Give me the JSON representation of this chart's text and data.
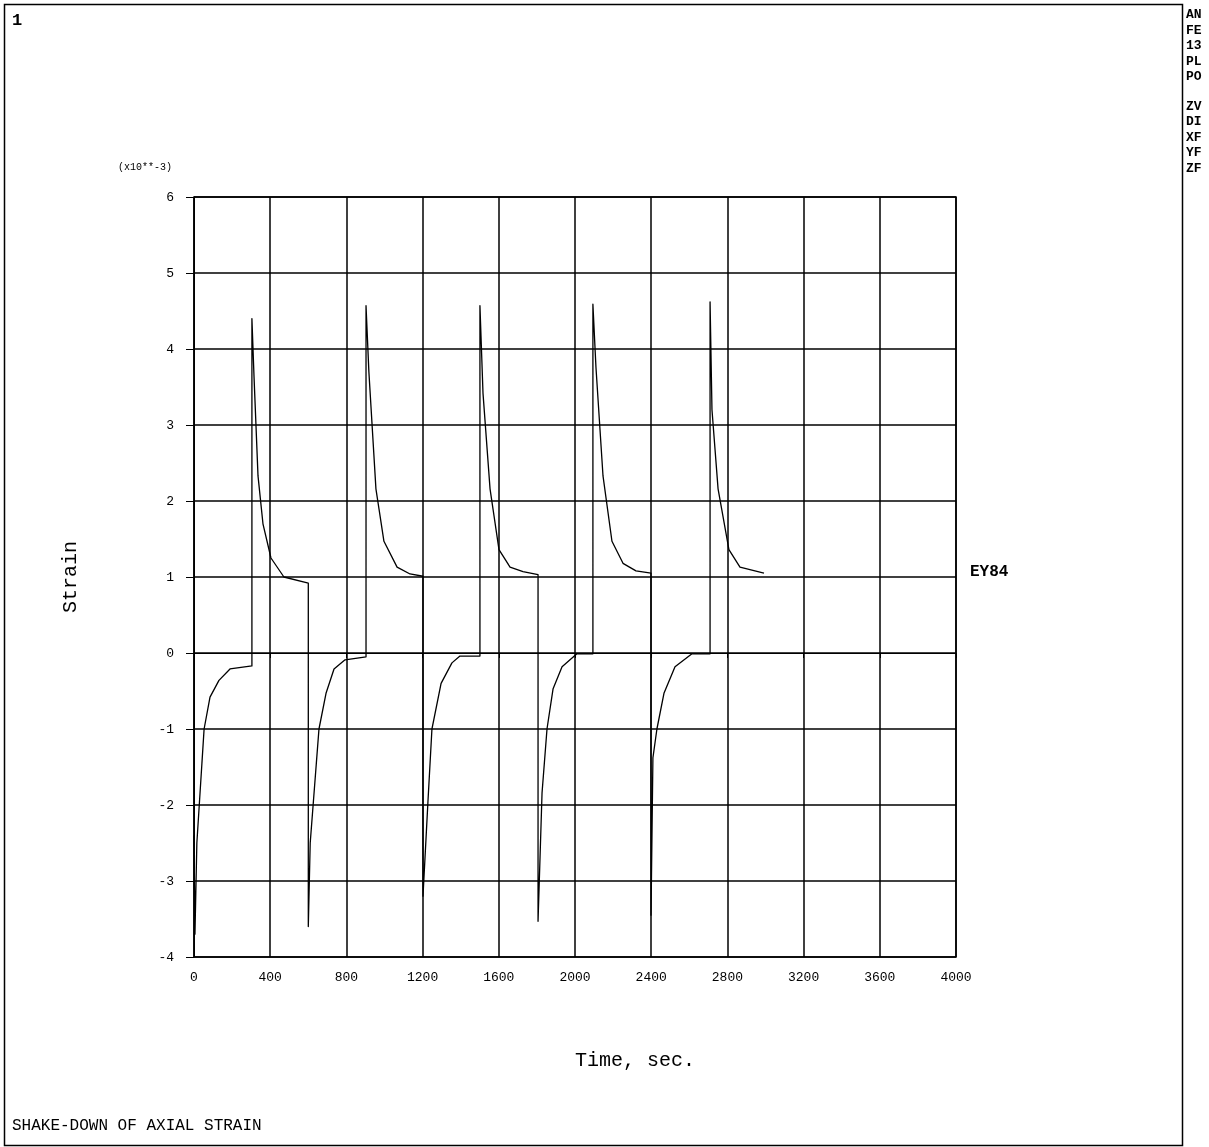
{
  "chart_data": {
    "type": "line",
    "title": "SHAKE-DOWN OF AXIAL STRAIN",
    "xlabel": "Time, sec.",
    "ylabel": "Strain",
    "annotations": [
      "1",
      "(x10**-3)",
      "AN",
      "FE",
      "13",
      "PL",
      "PO",
      "ZV",
      "DI",
      "XF",
      "YF",
      "ZF"
    ],
    "xlim": [
      0,
      4000
    ],
    "xticks": [
      0,
      400,
      800,
      1200,
      1600,
      2000,
      2400,
      2800,
      3200,
      3600,
      4000
    ],
    "ylim": [
      -4,
      6
    ],
    "yticks": [
      -4,
      -3,
      -2,
      -1,
      0,
      1,
      2,
      3,
      4,
      5,
      6
    ],
    "grid": true,
    "legend": false,
    "marker": "none",
    "line_style": "solid",
    "series": [
      {
        "name": "EY84",
        "color": "#000000",
        "x": [
          0,
          5,
          15,
          53,
          84,
          131,
          189,
          304,
          304,
          315,
          336,
          362,
          404,
          472,
          600,
          600,
          610,
          656,
          693,
          735,
          793,
          903,
          903,
          918,
          955,
          997,
          1066,
          1134,
          1202,
          1202,
          1228,
          1249,
          1297,
          1354,
          1396,
          1501,
          1501,
          1517,
          1554,
          1601,
          1659,
          1727,
          1806,
          1806,
          1827,
          1853,
          1885,
          1932,
          2010,
          2094,
          2094,
          2110,
          2147,
          2194,
          2252,
          2320,
          2399,
          2399,
          2409,
          2430,
          2467,
          2525,
          2614,
          2709,
          2709,
          2719,
          2751,
          2808,
          2866,
          2992
        ],
        "values": [
          -2.4,
          -3.7,
          -2.5,
          -1,
          -0.58,
          -0.36,
          -0.21,
          -0.17,
          4.4,
          3.64,
          2.33,
          1.7,
          1.25,
          1,
          0.92,
          -3.6,
          -2.5,
          -1,
          -0.53,
          -0.21,
          -0.09,
          -0.05,
          4.57,
          3.7,
          2.16,
          1.47,
          1.13,
          1.04,
          1.01,
          -3.2,
          -1.96,
          -1,
          -0.4,
          -0.13,
          -0.04,
          -0.04,
          4.57,
          3.42,
          2.16,
          1.36,
          1.13,
          1.07,
          1.03,
          -3.53,
          -1.84,
          -1,
          -0.47,
          -0.18,
          -0.01,
          -0.01,
          4.59,
          3.76,
          2.33,
          1.47,
          1.18,
          1.08,
          1.05,
          -3.45,
          -1.38,
          -1,
          -0.53,
          -0.18,
          -0.01,
          -0.01,
          4.62,
          3.2,
          2.16,
          1.36,
          1.13,
          1.05
        ]
      }
    ]
  }
}
